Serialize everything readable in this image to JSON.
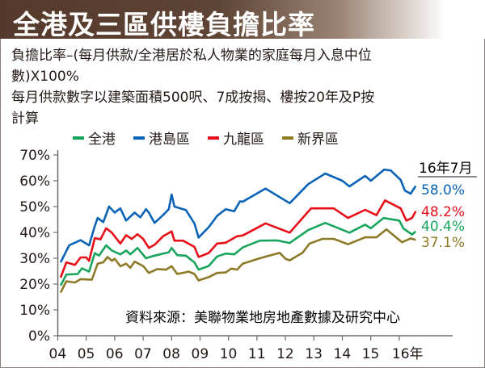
{
  "header": {
    "title": "全港及三區供樓負擔比率"
  },
  "description": [
    "負擔比率–(每月供款/全港居於私人物業的家庭每月入息中位",
    "數)X100%",
    "每月供款數字以建築面積500呎、7成按揭、樓按20年及P按",
    "計算"
  ],
  "chart_data": {
    "type": "line",
    "title": "全港及三區供樓負擔比率",
    "xlabel": "",
    "ylabel": "",
    "ylim": [
      0,
      70
    ],
    "xlim": [
      2004,
      2016.58
    ],
    "yticks": [
      "0%",
      "10%",
      "20%",
      "30%",
      "40%",
      "50%",
      "60%",
      "70%"
    ],
    "xticks": [
      "04",
      "05",
      "06",
      "07",
      "08",
      "09",
      "10",
      "11",
      "12",
      "13",
      "14",
      "15",
      "16年"
    ],
    "legend_position": "top",
    "source": "資料來源：美聯物業地房地產數據及研究中心",
    "end_label_title": "16年7月",
    "series": [
      {
        "name": "全港",
        "color": "#17a55c",
        "end_label": "40.4%",
        "points": [
          [
            4.1,
            19.4
          ],
          [
            4.3,
            23.7
          ],
          [
            4.7,
            23.9
          ],
          [
            4.85,
            26.1
          ],
          [
            5.1,
            24.8
          ],
          [
            5.3,
            32
          ],
          [
            5.45,
            31
          ],
          [
            5.7,
            35
          ],
          [
            5.9,
            33
          ],
          [
            6.2,
            31.5
          ],
          [
            6.4,
            33
          ],
          [
            6.55,
            31.5
          ],
          [
            6.8,
            34
          ],
          [
            7.1,
            30
          ],
          [
            7.4,
            31
          ],
          [
            7.9,
            32.3
          ],
          [
            8.0,
            34
          ],
          [
            8.2,
            31.2
          ],
          [
            8.5,
            31
          ],
          [
            8.8,
            28.4
          ],
          [
            8.95,
            25.6
          ],
          [
            9.3,
            27
          ],
          [
            9.6,
            30.7
          ],
          [
            9.9,
            31.8
          ],
          [
            10.2,
            31.5
          ],
          [
            10.5,
            34.2
          ],
          [
            11.1,
            36.8
          ],
          [
            11.7,
            36.9
          ],
          [
            12.15,
            35.9
          ],
          [
            12.8,
            40.9
          ],
          [
            13.4,
            43.7
          ],
          [
            14.25,
            39.9
          ],
          [
            14.8,
            43
          ],
          [
            15.0,
            41.6
          ],
          [
            15.45,
            45.6
          ],
          [
            16.0,
            44.6
          ],
          [
            16.15,
            41.5
          ],
          [
            16.45,
            39.2
          ],
          [
            16.58,
            40.4
          ]
        ]
      },
      {
        "name": "港島區",
        "color": "#0a63b6",
        "end_label": "58.0%",
        "points": [
          [
            4.1,
            28.4
          ],
          [
            4.4,
            35
          ],
          [
            4.8,
            37
          ],
          [
            5.1,
            35
          ],
          [
            5.3,
            42.5
          ],
          [
            5.4,
            45.6
          ],
          [
            5.6,
            44
          ],
          [
            5.8,
            50
          ],
          [
            6.0,
            47.7
          ],
          [
            6.2,
            49.3
          ],
          [
            6.4,
            44.6
          ],
          [
            6.7,
            47.7
          ],
          [
            6.9,
            45.8
          ],
          [
            7.1,
            49
          ],
          [
            7.2,
            47.7
          ],
          [
            7.4,
            43.7
          ],
          [
            7.7,
            46.7
          ],
          [
            7.9,
            49
          ],
          [
            8.0,
            54.7
          ],
          [
            8.1,
            50
          ],
          [
            8.5,
            48.7
          ],
          [
            8.8,
            43.5
          ],
          [
            8.95,
            38
          ],
          [
            9.3,
            42
          ],
          [
            9.6,
            46.4
          ],
          [
            9.9,
            49
          ],
          [
            10.2,
            48.2
          ],
          [
            10.4,
            52
          ],
          [
            10.5,
            51.9
          ],
          [
            11.3,
            57
          ],
          [
            12.15,
            51.3
          ],
          [
            12.8,
            58.7
          ],
          [
            13.4,
            62.8
          ],
          [
            14.0,
            60
          ],
          [
            14.25,
            57.8
          ],
          [
            14.8,
            61.9
          ],
          [
            15.0,
            60
          ],
          [
            15.47,
            64.3
          ],
          [
            15.7,
            64
          ],
          [
            16.05,
            60.3
          ],
          [
            16.2,
            56.2
          ],
          [
            16.4,
            55
          ],
          [
            16.58,
            58
          ]
        ]
      },
      {
        "name": "九龍區",
        "color": "#e60f19",
        "end_label": "48.2%",
        "points": [
          [
            4.1,
            22.5
          ],
          [
            4.3,
            28.4
          ],
          [
            4.6,
            27.4
          ],
          [
            4.8,
            30.3
          ],
          [
            5.0,
            30.3
          ],
          [
            5.1,
            29
          ],
          [
            5.3,
            37.8
          ],
          [
            5.5,
            37.3
          ],
          [
            5.7,
            41.6
          ],
          [
            5.9,
            39.9
          ],
          [
            6.2,
            35.7
          ],
          [
            6.4,
            38.9
          ],
          [
            6.6,
            37.5
          ],
          [
            6.8,
            39.3
          ],
          [
            7.0,
            37.5
          ],
          [
            7.2,
            34
          ],
          [
            7.4,
            35.2
          ],
          [
            7.7,
            38.5
          ],
          [
            8.0,
            40.4
          ],
          [
            8.1,
            36.8
          ],
          [
            8.4,
            36.8
          ],
          [
            8.8,
            34.4
          ],
          [
            8.95,
            30.5
          ],
          [
            9.3,
            32
          ],
          [
            9.6,
            35.7
          ],
          [
            9.9,
            36
          ],
          [
            10.3,
            38.5
          ],
          [
            10.5,
            38.8
          ],
          [
            11.3,
            43.5
          ],
          [
            12.15,
            39.9
          ],
          [
            12.9,
            49.3
          ],
          [
            13.7,
            49.3
          ],
          [
            14.2,
            45.6
          ],
          [
            14.8,
            48.75
          ],
          [
            15.2,
            46.7
          ],
          [
            15.5,
            52.4
          ],
          [
            16.05,
            49.3
          ],
          [
            16.25,
            44.6
          ],
          [
            16.45,
            45.6
          ],
          [
            16.58,
            48.2
          ]
        ]
      },
      {
        "name": "新界區",
        "color": "#8d7a27",
        "end_label": "37.1%",
        "points": [
          [
            4.1,
            16.7
          ],
          [
            4.3,
            21.1
          ],
          [
            4.6,
            20.6
          ],
          [
            4.8,
            21.9
          ],
          [
            5.2,
            21.7
          ],
          [
            5.4,
            27.9
          ],
          [
            5.6,
            28.4
          ],
          [
            5.75,
            30.5
          ],
          [
            5.9,
            29
          ],
          [
            6.0,
            29.8
          ],
          [
            6.2,
            26.9
          ],
          [
            6.4,
            27.9
          ],
          [
            6.55,
            26.3
          ],
          [
            6.7,
            28.7
          ],
          [
            7.0,
            27
          ],
          [
            7.2,
            24.3
          ],
          [
            7.5,
            25.8
          ],
          [
            7.8,
            25.6
          ],
          [
            8.0,
            26.9
          ],
          [
            8.2,
            23.9
          ],
          [
            8.6,
            24.8
          ],
          [
            8.8,
            23.9
          ],
          [
            8.95,
            21.4
          ],
          [
            9.3,
            22.7
          ],
          [
            9.6,
            24.3
          ],
          [
            9.9,
            24.5
          ],
          [
            10.1,
            26
          ],
          [
            10.3,
            25.6
          ],
          [
            10.5,
            27.9
          ],
          [
            11.1,
            30
          ],
          [
            11.8,
            32.1
          ],
          [
            12.0,
            29.8
          ],
          [
            12.15,
            29.2
          ],
          [
            12.6,
            32.1
          ],
          [
            12.85,
            35.7
          ],
          [
            13.3,
            37.5
          ],
          [
            13.7,
            37.5
          ],
          [
            14.2,
            35.4
          ],
          [
            14.8,
            38.1
          ],
          [
            15.2,
            38.1
          ],
          [
            15.55,
            41.2
          ],
          [
            16.1,
            36.2
          ],
          [
            16.4,
            37.7
          ],
          [
            16.58,
            37.1
          ]
        ]
      }
    ]
  }
}
